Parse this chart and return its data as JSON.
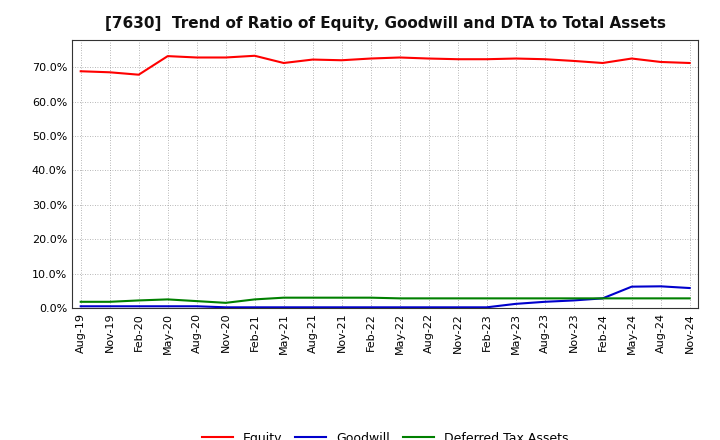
{
  "title": "[7630]  Trend of Ratio of Equity, Goodwill and DTA to Total Assets",
  "background_color": "#ffffff",
  "grid_color": "#888888",
  "x_labels": [
    "Aug-19",
    "Nov-19",
    "Feb-20",
    "May-20",
    "Aug-20",
    "Nov-20",
    "Feb-21",
    "May-21",
    "Aug-21",
    "Nov-21",
    "Feb-22",
    "May-22",
    "Aug-22",
    "Nov-22",
    "Feb-23",
    "May-23",
    "Aug-23",
    "Nov-23",
    "Feb-24",
    "May-24",
    "Aug-24",
    "Nov-24"
  ],
  "equity": [
    68.8,
    68.5,
    67.8,
    73.2,
    72.8,
    72.8,
    73.3,
    71.2,
    72.2,
    72.0,
    72.5,
    72.8,
    72.5,
    72.3,
    72.3,
    72.5,
    72.3,
    71.8,
    71.2,
    72.5,
    71.5,
    71.2
  ],
  "goodwill": [
    0.5,
    0.5,
    0.5,
    0.5,
    0.5,
    0.2,
    0.2,
    0.2,
    0.2,
    0.2,
    0.2,
    0.2,
    0.2,
    0.2,
    0.2,
    1.2,
    1.8,
    2.2,
    2.8,
    6.2,
    6.3,
    5.8
  ],
  "dta": [
    1.8,
    1.8,
    2.2,
    2.5,
    2.0,
    1.5,
    2.5,
    3.0,
    3.0,
    3.0,
    3.0,
    2.8,
    2.8,
    2.8,
    2.8,
    2.8,
    2.8,
    2.8,
    2.8,
    2.8,
    2.8,
    2.8
  ],
  "equity_color": "#ff0000",
  "goodwill_color": "#0000cc",
  "dta_color": "#008000",
  "ylim_min": 0,
  "ylim_max": 78,
  "yticks": [
    0,
    10,
    20,
    30,
    40,
    50,
    60,
    70
  ],
  "legend_labels": [
    "Equity",
    "Goodwill",
    "Deferred Tax Assets"
  ],
  "title_fontsize": 11,
  "tick_fontsize": 8,
  "legend_fontsize": 9
}
